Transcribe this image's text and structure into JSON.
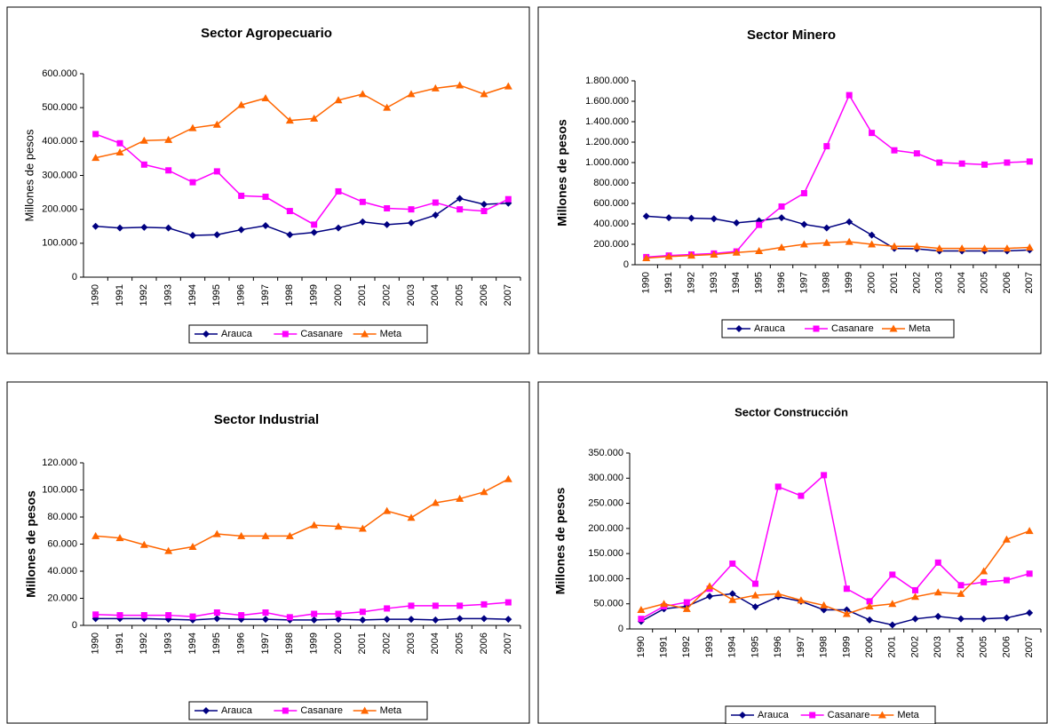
{
  "chart_data": [
    {
      "type": "line",
      "title": "Sector Agropecuario",
      "y_label": "Millones de pesos",
      "categories": [
        "1990",
        "1991",
        "1992",
        "1993",
        "1994",
        "1995",
        "1996",
        "1997",
        "1998",
        "1999",
        "2000",
        "2001",
        "2002",
        "2003",
        "2004",
        "2005",
        "2006",
        "2007"
      ],
      "series": [
        {
          "name": "Arauca",
          "color": "#000080",
          "values": [
            150000,
            145000,
            147000,
            145000,
            123000,
            125000,
            140000,
            152000,
            125000,
            132000,
            145000,
            163000,
            155000,
            160000,
            183000,
            232000,
            215000,
            218000
          ]
        },
        {
          "name": "Casanare",
          "color": "#ff00ff",
          "values": [
            422000,
            395000,
            332000,
            315000,
            280000,
            312000,
            240000,
            237000,
            195000,
            155000,
            253000,
            222000,
            203000,
            200000,
            220000,
            200000,
            195000,
            230000
          ]
        },
        {
          "name": "Meta",
          "color": "#ff6600",
          "values": [
            352000,
            368000,
            403000,
            405000,
            440000,
            450000,
            508000,
            528000,
            462000,
            468000,
            522000,
            540000,
            500000,
            540000,
            557000,
            566000,
            540000,
            563000
          ]
        }
      ],
      "ylim": [
        0,
        600000
      ],
      "yticks": [
        0,
        {
          "value": 100000,
          "label": "100.000"
        },
        {
          "value": 200000,
          "label": "200.000"
        },
        {
          "value": 300000,
          "label": "300.000"
        },
        {
          "value": 400000,
          "label": "400.000"
        },
        {
          "value": 500000,
          "label": "500.000"
        },
        {
          "value": 600000,
          "label": "600.000"
        }
      ],
      "grid": false,
      "legend": "bottom"
    },
    {
      "type": "line",
      "title": "Sector Minero",
      "y_label": "Millones de pesos",
      "categories": [
        "1990",
        "1991",
        "1992",
        "1993",
        "1994",
        "1995",
        "1996",
        "1997",
        "1998",
        "1999",
        "2000",
        "2001",
        "2002",
        "2003",
        "2004",
        "2005",
        "2006",
        "2007"
      ],
      "series": [
        {
          "name": "Arauca",
          "color": "#000080",
          "values": [
            475000,
            460000,
            455000,
            450000,
            410000,
            430000,
            460000,
            395000,
            360000,
            420000,
            290000,
            160000,
            155000,
            135000,
            135000,
            135000,
            135000,
            145000
          ]
        },
        {
          "name": "Casanare",
          "color": "#ff00ff",
          "values": [
            75000,
            90000,
            100000,
            110000,
            130000,
            390000,
            570000,
            700000,
            1160000,
            1660000,
            1290000,
            1120000,
            1090000,
            1000000,
            990000,
            980000,
            1000000,
            1010000
          ]
        },
        {
          "name": "Meta",
          "color": "#ff6600",
          "values": [
            65000,
            80000,
            90000,
            100000,
            120000,
            135000,
            170000,
            200000,
            215000,
            225000,
            200000,
            180000,
            180000,
            160000,
            160000,
            160000,
            160000,
            170000
          ]
        }
      ],
      "ylim": [
        0,
        1800000
      ],
      "yticks": [
        0,
        {
          "value": 200000,
          "label": "200.000"
        },
        {
          "value": 400000,
          "label": "400.000"
        },
        {
          "value": 600000,
          "label": "600.000"
        },
        {
          "value": 800000,
          "label": "800.000"
        },
        {
          "value": 1000000,
          "label": "1.000.000"
        },
        {
          "value": 1200000,
          "label": "1.200.000"
        },
        {
          "value": 1400000,
          "label": "1.400.000"
        },
        {
          "value": 1600000,
          "label": "1.600.000"
        },
        {
          "value": 1800000,
          "label": "1.800.000"
        }
      ],
      "grid": false,
      "legend": "bottom"
    },
    {
      "type": "line",
      "title": "Sector Industrial",
      "y_label": "Millones de pesos",
      "categories": [
        "1990",
        "1991",
        "1992",
        "1993",
        "1994",
        "1995",
        "1996",
        "1997",
        "1998",
        "1999",
        "2000",
        "2001",
        "2002",
        "2003",
        "2004",
        "2005",
        "2006",
        "2007"
      ],
      "series": [
        {
          "name": "Arauca",
          "color": "#000080",
          "values": [
            5000,
            5000,
            5000,
            4500,
            4000,
            5000,
            4500,
            4500,
            4000,
            4000,
            4500,
            4000,
            4500,
            4500,
            4000,
            5000,
            5000,
            4500
          ]
        },
        {
          "name": "Casanare",
          "color": "#ff00ff",
          "values": [
            8000,
            7500,
            7500,
            7500,
            6500,
            9500,
            7500,
            9500,
            6000,
            8500,
            8500,
            10000,
            12500,
            14500,
            14500,
            14500,
            15500,
            17000
          ]
        },
        {
          "name": "Meta",
          "color": "#ff6600",
          "values": [
            66000,
            64500,
            59500,
            55000,
            58000,
            67500,
            66000,
            66000,
            66000,
            74000,
            73000,
            71500,
            84500,
            79500,
            90500,
            93500,
            98500,
            108000
          ]
        }
      ],
      "ylim": [
        0,
        120000
      ],
      "yticks": [
        0,
        {
          "value": 20000,
          "label": "20.000"
        },
        {
          "value": 40000,
          "label": "40.000"
        },
        {
          "value": 60000,
          "label": "60.000"
        },
        {
          "value": 80000,
          "label": "80.000"
        },
        {
          "value": 100000,
          "label": "100.000"
        },
        {
          "value": 120000,
          "label": "120.000"
        }
      ],
      "grid": false,
      "legend": "bottom"
    },
    {
      "type": "line",
      "title": "Sector Construcción",
      "y_label": "Millones de pesos",
      "categories": [
        "1990",
        "1991",
        "1992",
        "1993",
        "1994",
        "1995",
        "1996",
        "1997",
        "1998",
        "1999",
        "2000",
        "2001",
        "2002",
        "2003",
        "2004",
        "2005",
        "2006",
        "2007"
      ],
      "series": [
        {
          "name": "Arauca",
          "color": "#000080",
          "values": [
            15000,
            40000,
            45000,
            65000,
            70000,
            44000,
            64000,
            55000,
            38000,
            38000,
            18000,
            8000,
            20000,
            25000,
            20000,
            20000,
            22000,
            32000
          ]
        },
        {
          "name": "Casanare",
          "color": "#ff00ff",
          "values": [
            20000,
            45000,
            53000,
            80000,
            130000,
            90000,
            283000,
            265000,
            306000,
            80000,
            55000,
            108000,
            77000,
            132000,
            87000,
            93000,
            97000,
            110000
          ]
        },
        {
          "name": "Meta",
          "color": "#ff6600",
          "values": [
            38000,
            50000,
            40000,
            85000,
            58000,
            67000,
            70000,
            57000,
            47000,
            30000,
            45000,
            50000,
            64000,
            73000,
            70000,
            115000,
            178000,
            195000
          ]
        }
      ],
      "ylim": [
        0,
        350000
      ],
      "yticks": [
        0,
        {
          "value": 50000,
          "label": "50.000"
        },
        {
          "value": 100000,
          "label": "100.000"
        },
        {
          "value": 150000,
          "label": "150.000"
        },
        {
          "value": 200000,
          "label": "200.000"
        },
        {
          "value": 250000,
          "label": "250.000"
        },
        {
          "value": 300000,
          "label": "300.000"
        },
        {
          "value": 350000,
          "label": "350.000"
        }
      ],
      "grid": false,
      "legend": "bottom"
    }
  ]
}
